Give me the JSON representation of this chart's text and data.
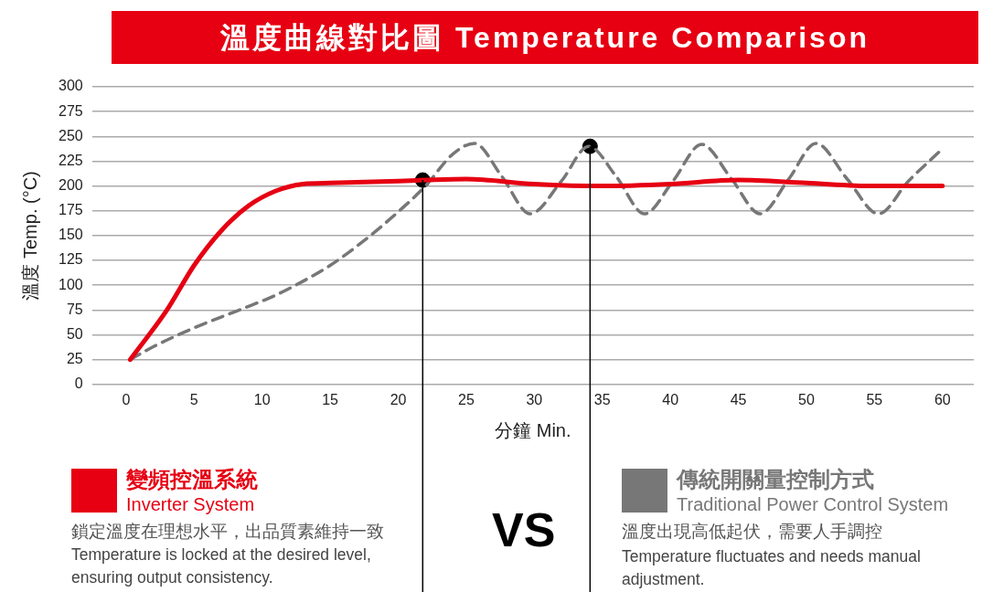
{
  "chart_data": {
    "type": "line",
    "title": "溫度曲線對比圖 Temperature Comparison",
    "xlabel": "分鐘 Min.",
    "ylabel": "溫度 Temp. (°C)",
    "xlim": [
      -2.5,
      62.3
    ],
    "xticks": [
      0,
      5,
      10,
      15,
      20,
      25,
      30,
      35,
      40,
      45,
      50,
      55,
      60
    ],
    "ylim": [
      0,
      300
    ],
    "yticks": [
      0,
      25,
      50,
      75,
      100,
      125,
      150,
      175,
      200,
      225,
      250,
      275,
      300
    ],
    "grid": "y",
    "legend": "bottom",
    "marker": "none",
    "series": [
      {
        "name": "變頻控溫系統",
        "color": "#e60012",
        "line_style": "solid",
        "x": [
          0.3,
          3,
          5,
          7,
          9,
          11,
          13,
          15,
          20,
          22,
          25,
          30,
          35,
          40,
          45,
          50,
          55,
          60
        ],
        "values": [
          25,
          75,
          120,
          155,
          180,
          195,
          202,
          203,
          205,
          206,
          207,
          202,
          200,
          202,
          206,
          203,
          200,
          200
        ]
      },
      {
        "name": "傳統開關量控制方式",
        "color": "#777777",
        "line_style": "dashed",
        "x": [
          0.3,
          2,
          5,
          8.5,
          11,
          13,
          15,
          17.4,
          20,
          22,
          24,
          25.6,
          27.6,
          29.7,
          32,
          34,
          36,
          38.1,
          40.2,
          42.3,
          44.5,
          46.6,
          48.7,
          50.7,
          53,
          55.3,
          57.5,
          59.8
        ],
        "values": [
          25,
          38,
          57,
          76,
          90,
          104,
          120,
          144,
          174,
          200,
          232,
          243,
          210,
          172,
          205,
          240,
          210,
          172,
          205,
          242,
          207,
          172,
          207,
          243,
          207,
          172,
          205,
          235
        ]
      },
      {
        "type": "scatter",
        "color": "#000000",
        "marker": "circle",
        "x": [
          21.8,
          34.1
        ],
        "values": [
          206,
          240
        ]
      }
    ],
    "ref_lines": [
      {
        "axis": "x",
        "value": 21.8,
        "color": "#000000"
      },
      {
        "axis": "x",
        "value": 34.1,
        "color": "#000000"
      }
    ],
    "annotations": [
      "Inverter System",
      "鎖定溫度在理想水平，出品質素維持一致",
      "Temperature is locked at the desired level, ensuring output consistency.",
      "VS",
      "Traditional Power Control System",
      "溫度出現高低起伏，需要人手調控",
      "Temperature fluctuates and needs manual adjustment."
    ]
  }
}
